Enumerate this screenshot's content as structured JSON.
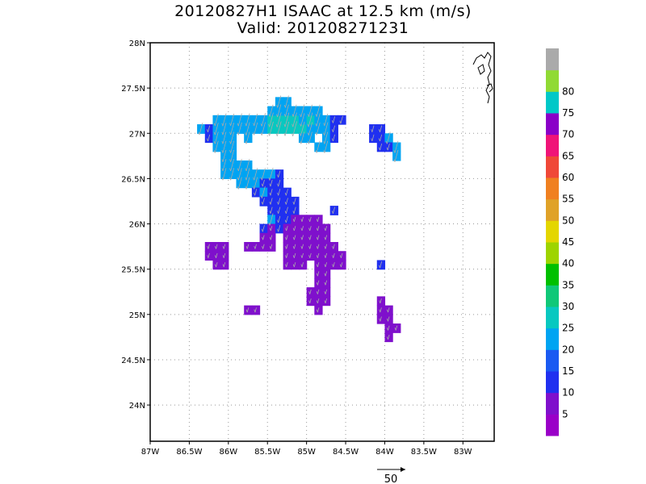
{
  "title": {
    "line1": "20120827H1 ISAAC at 12.5 km (m/s)",
    "line2": "Valid: 201208271231"
  },
  "map": {
    "lon_range": [
      -87,
      -82.6
    ],
    "lat_range": [
      23.6,
      28
    ],
    "lat_ticks": [
      {
        "value": 28,
        "label": "28N"
      },
      {
        "value": 27.5,
        "label": "27.5N"
      },
      {
        "value": 27,
        "label": "27N"
      },
      {
        "value": 26.5,
        "label": "26.5N"
      },
      {
        "value": 26,
        "label": "26N"
      },
      {
        "value": 25.5,
        "label": "25.5N"
      },
      {
        "value": 25,
        "label": "25N"
      },
      {
        "value": 24.5,
        "label": "24.5N"
      },
      {
        "value": 24,
        "label": "24N"
      }
    ],
    "lon_ticks": [
      {
        "value": -87,
        "label": "87W"
      },
      {
        "value": -86.5,
        "label": "86.5W"
      },
      {
        "value": -86,
        "label": "86W"
      },
      {
        "value": -85.5,
        "label": "85.5W"
      },
      {
        "value": -85,
        "label": "85W"
      },
      {
        "value": -84.5,
        "label": "84.5W"
      },
      {
        "value": -84,
        "label": "84W"
      },
      {
        "value": -83.5,
        "label": "83.5W"
      },
      {
        "value": -83,
        "label": "83W"
      }
    ],
    "grid": true,
    "grid_style": "dotted"
  },
  "colorbar": {
    "levels": [
      {
        "label": "",
        "color": "#9a00c8"
      },
      {
        "label": "5",
        "color": "#7f10cc"
      },
      {
        "label": "10",
        "color": "#2030f0"
      },
      {
        "label": "15",
        "color": "#1a5af2"
      },
      {
        "label": "20",
        "color": "#00a4f2"
      },
      {
        "label": "25",
        "color": "#08c8c0"
      },
      {
        "label": "30",
        "color": "#10c878"
      },
      {
        "label": "35",
        "color": "#00c000"
      },
      {
        "label": "40",
        "color": "#9ed400"
      },
      {
        "label": "45",
        "color": "#e4d600"
      },
      {
        "label": "50",
        "color": "#e0a228"
      },
      {
        "label": "55",
        "color": "#f08020"
      },
      {
        "label": "60",
        "color": "#f04838"
      },
      {
        "label": "65",
        "color": "#f01478"
      },
      {
        "label": "70",
        "color": "#8a00c8"
      },
      {
        "label": "75",
        "color": "#00c8c8"
      },
      {
        "label": "80",
        "color": "#90da34"
      },
      {
        "label": "",
        "color": "#aaaaaa"
      }
    ]
  },
  "reference_vector": {
    "value": 50,
    "label": "50"
  },
  "chart_data": {
    "type": "heatmap",
    "title": "20120827H1 ISAAC at 12.5 km (m/s)",
    "subtitle": "Valid: 201208271231",
    "units": "m/s",
    "xlabel": "",
    "ylabel": "",
    "xlim": [
      -87,
      -82.6
    ],
    "ylim": [
      23.6,
      28
    ],
    "grid": true,
    "legend_position": "right",
    "wind_direction_deg": 255,
    "cells": [
      [
        -86.35,
        27.05,
        22
      ],
      [
        -86.25,
        27.05,
        12
      ],
      [
        -86.15,
        27.05,
        22
      ],
      [
        -86.05,
        27.05,
        22
      ],
      [
        -85.95,
        27.05,
        22
      ],
      [
        -85.85,
        27.05,
        23
      ],
      [
        -85.75,
        27.05,
        24
      ],
      [
        -85.65,
        27.05,
        23
      ],
      [
        -85.55,
        27.05,
        24
      ],
      [
        -85.45,
        27.05,
        26
      ],
      [
        -85.35,
        27.05,
        27
      ],
      [
        -85.25,
        27.05,
        26
      ],
      [
        -85.15,
        27.05,
        27
      ],
      [
        -85.05,
        27.05,
        26
      ],
      [
        -84.95,
        27.05,
        24
      ],
      [
        -84.85,
        27.05,
        23
      ],
      [
        -84.75,
        27.05,
        24
      ],
      [
        -84.65,
        27.05,
        12
      ],
      [
        -86.15,
        27.15,
        22
      ],
      [
        -86.05,
        27.15,
        23
      ],
      [
        -85.95,
        27.15,
        22
      ],
      [
        -85.85,
        27.15,
        23
      ],
      [
        -85.75,
        27.15,
        23
      ],
      [
        -85.65,
        27.15,
        22
      ],
      [
        -85.55,
        27.15,
        24
      ],
      [
        -85.45,
        27.15,
        26
      ],
      [
        -85.35,
        27.15,
        27
      ],
      [
        -85.25,
        27.15,
        26
      ],
      [
        -85.15,
        27.15,
        26
      ],
      [
        -85.05,
        27.15,
        24
      ],
      [
        -84.95,
        27.15,
        26
      ],
      [
        -84.85,
        27.15,
        24
      ],
      [
        -84.75,
        27.15,
        22
      ],
      [
        -84.65,
        27.15,
        12
      ],
      [
        -84.55,
        27.15,
        14
      ],
      [
        -85.45,
        27.25,
        22
      ],
      [
        -85.35,
        27.25,
        23
      ],
      [
        -85.25,
        27.25,
        22
      ],
      [
        -85.15,
        27.25,
        22
      ],
      [
        -85.05,
        27.25,
        23
      ],
      [
        -84.95,
        27.25,
        22
      ],
      [
        -84.85,
        27.25,
        22
      ],
      [
        -85.35,
        27.35,
        22
      ],
      [
        -85.25,
        27.35,
        22
      ],
      [
        -86.25,
        26.95,
        12
      ],
      [
        -86.15,
        26.95,
        22
      ],
      [
        -86.05,
        26.95,
        22
      ],
      [
        -85.95,
        26.95,
        22
      ],
      [
        -85.75,
        26.95,
        22
      ],
      [
        -85.05,
        26.95,
        22
      ],
      [
        -84.95,
        26.95,
        22
      ],
      [
        -84.75,
        26.95,
        22
      ],
      [
        -84.65,
        26.95,
        12
      ],
      [
        -86.15,
        26.85,
        22
      ],
      [
        -86.05,
        26.85,
        22
      ],
      [
        -85.95,
        26.85,
        22
      ],
      [
        -84.85,
        26.85,
        22
      ],
      [
        -84.75,
        26.85,
        22
      ],
      [
        -86.05,
        26.75,
        22
      ],
      [
        -85.95,
        26.75,
        22
      ],
      [
        -86.05,
        26.65,
        22
      ],
      [
        -85.95,
        26.65,
        22
      ],
      [
        -85.85,
        26.65,
        22
      ],
      [
        -85.75,
        26.65,
        22
      ],
      [
        -86.05,
        26.55,
        22
      ],
      [
        -85.95,
        26.55,
        22
      ],
      [
        -85.85,
        26.55,
        22
      ],
      [
        -85.75,
        26.55,
        22
      ],
      [
        -85.65,
        26.55,
        22
      ],
      [
        -85.55,
        26.55,
        22
      ],
      [
        -85.45,
        26.55,
        23
      ],
      [
        -85.35,
        26.55,
        12
      ],
      [
        -85.85,
        26.45,
        22
      ],
      [
        -85.75,
        26.45,
        22
      ],
      [
        -85.65,
        26.45,
        22
      ],
      [
        -85.55,
        26.45,
        12
      ],
      [
        -85.45,
        26.45,
        12
      ],
      [
        -85.35,
        26.45,
        12
      ],
      [
        -85.65,
        26.35,
        12
      ],
      [
        -85.55,
        26.35,
        22
      ],
      [
        -85.45,
        26.35,
        12
      ],
      [
        -85.35,
        26.35,
        12
      ],
      [
        -85.25,
        26.35,
        12
      ],
      [
        -85.55,
        26.25,
        12
      ],
      [
        -85.45,
        26.25,
        12
      ],
      [
        -85.35,
        26.25,
        12
      ],
      [
        -85.25,
        26.25,
        12
      ],
      [
        -85.15,
        26.25,
        12
      ],
      [
        -85.45,
        26.15,
        12
      ],
      [
        -85.35,
        26.15,
        12
      ],
      [
        -85.25,
        26.15,
        12
      ],
      [
        -85.15,
        26.15,
        12
      ],
      [
        -84.65,
        26.15,
        12
      ],
      [
        -85.45,
        26.05,
        22
      ],
      [
        -85.35,
        26.05,
        12
      ],
      [
        -85.25,
        26.05,
        12
      ],
      [
        -85.15,
        26.05,
        7
      ],
      [
        -85.05,
        26.05,
        7
      ],
      [
        -84.95,
        26.05,
        7
      ],
      [
        -84.85,
        26.05,
        7
      ],
      [
        -85.55,
        25.95,
        12
      ],
      [
        -85.45,
        25.95,
        7
      ],
      [
        -85.35,
        25.95,
        12
      ],
      [
        -85.25,
        25.95,
        7
      ],
      [
        -85.15,
        25.95,
        7
      ],
      [
        -85.05,
        25.95,
        7
      ],
      [
        -84.95,
        25.95,
        7
      ],
      [
        -84.85,
        25.95,
        7
      ],
      [
        -84.75,
        25.95,
        7
      ],
      [
        -85.55,
        25.85,
        7
      ],
      [
        -85.45,
        25.85,
        7
      ],
      [
        -85.25,
        25.85,
        7
      ],
      [
        -85.15,
        25.85,
        7
      ],
      [
        -85.05,
        25.85,
        7
      ],
      [
        -84.95,
        25.85,
        7
      ],
      [
        -84.85,
        25.85,
        7
      ],
      [
        -84.75,
        25.85,
        7
      ],
      [
        -86.25,
        25.75,
        7
      ],
      [
        -86.15,
        25.75,
        7
      ],
      [
        -86.05,
        25.75,
        7
      ],
      [
        -85.75,
        25.75,
        7
      ],
      [
        -85.65,
        25.75,
        7
      ],
      [
        -85.55,
        25.75,
        7
      ],
      [
        -85.45,
        25.75,
        7
      ],
      [
        -85.25,
        25.75,
        7
      ],
      [
        -85.15,
        25.75,
        7
      ],
      [
        -85.05,
        25.75,
        7
      ],
      [
        -84.95,
        25.75,
        7
      ],
      [
        -84.85,
        25.75,
        7
      ],
      [
        -84.75,
        25.75,
        7
      ],
      [
        -84.65,
        25.75,
        7
      ],
      [
        -86.25,
        25.65,
        7
      ],
      [
        -86.15,
        25.65,
        7
      ],
      [
        -86.05,
        25.65,
        7
      ],
      [
        -85.25,
        25.65,
        7
      ],
      [
        -85.15,
        25.65,
        7
      ],
      [
        -85.05,
        25.65,
        7
      ],
      [
        -84.95,
        25.65,
        7
      ],
      [
        -84.85,
        25.65,
        7
      ],
      [
        -84.75,
        25.65,
        7
      ],
      [
        -84.65,
        25.65,
        7
      ],
      [
        -84.55,
        25.65,
        7
      ],
      [
        -86.15,
        25.55,
        7
      ],
      [
        -86.05,
        25.55,
        7
      ],
      [
        -85.25,
        25.55,
        7
      ],
      [
        -85.15,
        25.55,
        7
      ],
      [
        -85.05,
        25.55,
        7
      ],
      [
        -84.85,
        25.55,
        7
      ],
      [
        -84.75,
        25.55,
        7
      ],
      [
        -84.65,
        25.55,
        7
      ],
      [
        -84.55,
        25.55,
        7
      ],
      [
        -84.05,
        25.55,
        12
      ],
      [
        -84.85,
        25.45,
        7
      ],
      [
        -84.75,
        25.45,
        7
      ],
      [
        -84.85,
        25.35,
        7
      ],
      [
        -84.75,
        25.35,
        7
      ],
      [
        -84.95,
        25.25,
        7
      ],
      [
        -84.85,
        25.25,
        7
      ],
      [
        -84.75,
        25.25,
        7
      ],
      [
        -84.95,
        25.15,
        7
      ],
      [
        -84.85,
        25.15,
        7
      ],
      [
        -84.75,
        25.15,
        7
      ],
      [
        -84.05,
        25.15,
        7
      ],
      [
        -84.85,
        25.05,
        7
      ],
      [
        -84.05,
        25.05,
        7
      ],
      [
        -83.95,
        25.05,
        7
      ],
      [
        -85.75,
        25.05,
        7
      ],
      [
        -85.65,
        25.05,
        7
      ],
      [
        -84.05,
        24.95,
        7
      ],
      [
        -83.95,
        24.95,
        7
      ],
      [
        -83.95,
        24.85,
        7
      ],
      [
        -83.85,
        24.85,
        7
      ],
      [
        -83.95,
        24.75,
        7
      ],
      [
        -84.15,
        27.05,
        12
      ],
      [
        -84.05,
        27.05,
        12
      ],
      [
        -84.15,
        26.95,
        12
      ],
      [
        -84.05,
        26.95,
        12
      ],
      [
        -83.95,
        26.95,
        22
      ],
      [
        -84.05,
        26.85,
        12
      ],
      [
        -83.95,
        26.85,
        12
      ],
      [
        -83.85,
        26.85,
        22
      ],
      [
        -83.85,
        26.75,
        22
      ]
    ]
  }
}
